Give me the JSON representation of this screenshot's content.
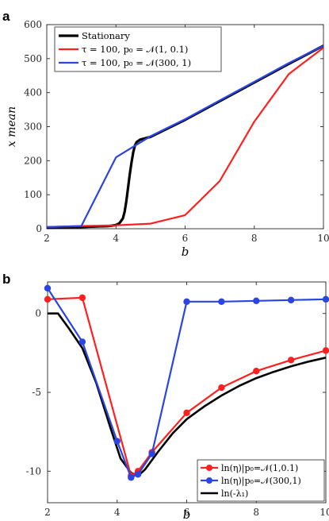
{
  "chart_data": [
    {
      "panel": "a",
      "type": "line",
      "title": "",
      "xlabel": "b",
      "ylabel": "x  mean",
      "xlim": [
        2,
        10
      ],
      "ylim": [
        0,
        600
      ],
      "xticks": [
        "2",
        "4",
        "6",
        "8",
        "10"
      ],
      "yticks": [
        "0",
        "100",
        "200",
        "300",
        "400",
        "500",
        "600"
      ],
      "legend_placement": "top-left",
      "grid": false,
      "series": [
        {
          "name": "Stationary",
          "color": "#000000",
          "x": [
            2,
            3,
            3.8,
            4.0,
            4.1,
            4.2,
            4.25,
            4.3,
            4.35,
            4.4,
            4.45,
            4.5,
            4.55,
            4.6,
            4.7,
            5,
            6,
            7,
            8,
            9,
            10
          ],
          "y": [
            3,
            5,
            8,
            11,
            16,
            30,
            50,
            80,
            120,
            160,
            195,
            225,
            245,
            255,
            262,
            270,
            320,
            375,
            430,
            485,
            538
          ]
        },
        {
          "name": "τ = 100, p₀ = 𝒩(1, 0.1)",
          "color": "#ff1f1f",
          "x": [
            2,
            3,
            4,
            5,
            6,
            7,
            8,
            9,
            10
          ],
          "y": [
            5,
            8,
            10,
            15,
            40,
            140,
            315,
            455,
            532
          ]
        },
        {
          "name": "τ = 100, p₀ = 𝒩(300, 1)",
          "color": "#2b45e0",
          "x": [
            2,
            3,
            4,
            5,
            6,
            7,
            8,
            9,
            10
          ],
          "y": [
            5,
            8,
            210,
            272,
            322,
            377,
            432,
            487,
            538
          ]
        }
      ]
    },
    {
      "panel": "b",
      "type": "line",
      "title": "",
      "xlabel": "b",
      "ylabel": "",
      "xlim": [
        2,
        10
      ],
      "ylim": [
        -12,
        2
      ],
      "xticks": [
        "2",
        "4",
        "6",
        "8",
        "10"
      ],
      "yticks": [
        "0",
        "-5",
        "-10"
      ],
      "legend_placement": "bottom-right",
      "grid": false,
      "series": [
        {
          "name": "ln(η)|p₀=𝒩(1,0.1)",
          "color": "#ff1f1f",
          "markers": true,
          "x": [
            2,
            3,
            4.4,
            4.6,
            5,
            6,
            7,
            8,
            9,
            10
          ],
          "y": [
            0.9,
            1.0,
            -10.3,
            -10.0,
            -8.8,
            -6.3,
            -4.7,
            -3.65,
            -2.95,
            -2.35
          ]
        },
        {
          "name": "ln(η)|p₀=𝒩(300,1)",
          "color": "#2b45e0",
          "markers": true,
          "x": [
            2,
            3,
            4,
            4.4,
            4.6,
            5,
            6,
            7,
            8,
            9,
            10
          ],
          "y": [
            1.6,
            -1.8,
            -8.1,
            -10.4,
            -10.2,
            -8.9,
            0.75,
            0.75,
            0.8,
            0.85,
            0.9
          ],
          "note_indices": [
            0,
            1,
            2,
            3,
            4,
            5,
            6,
            7,
            8,
            9,
            10
          ]
        },
        {
          "name": "ln(-λ₁)",
          "color": "#000000",
          "markers": false,
          "x": [
            2,
            2.3,
            2.6,
            3.0,
            3.4,
            3.8,
            4.1,
            4.4,
            4.6,
            4.8,
            5.2,
            5.6,
            6.0,
            6.5,
            7.0,
            7.5,
            8.0,
            8.5,
            9.0,
            9.5,
            10.0
          ],
          "y": [
            0.0,
            0.0,
            -0.9,
            -2.2,
            -4.4,
            -7.2,
            -9.2,
            -10.1,
            -10.3,
            -9.9,
            -8.7,
            -7.6,
            -6.7,
            -5.9,
            -5.2,
            -4.6,
            -4.1,
            -3.7,
            -3.35,
            -3.05,
            -2.8
          ]
        }
      ]
    }
  ],
  "labels": {
    "panel_a": "a",
    "panel_b": "b"
  }
}
